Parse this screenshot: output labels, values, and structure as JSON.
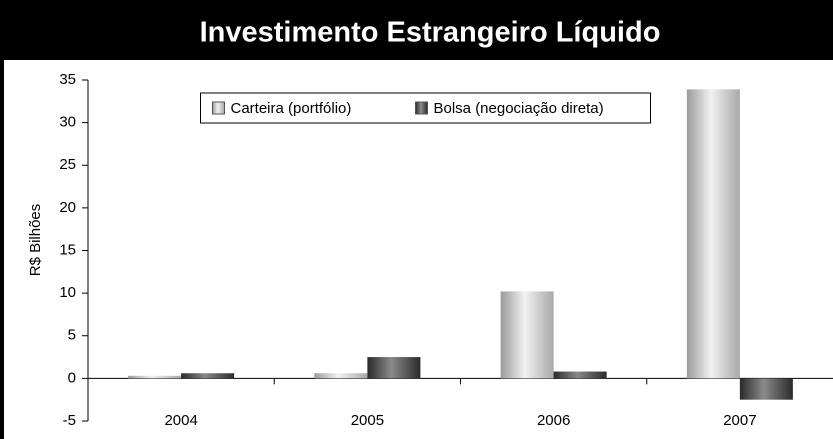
{
  "chart_data": {
    "type": "bar",
    "title": "Investimento Estrangeiro Líquido",
    "y_label": "R$ Bilhões",
    "categories": [
      "2004",
      "2005",
      "2006",
      "2007"
    ],
    "series": [
      {
        "name": "Carteira (portfólio)",
        "color": "#d4d4d4",
        "values": [
          0.3,
          0.6,
          10.2,
          33.9
        ]
      },
      {
        "name": "Bolsa (negociação direta)",
        "color": "#4a4a4a",
        "values": [
          0.6,
          2.5,
          0.8,
          -2.5
        ]
      }
    ],
    "ylim": [
      -5,
      35
    ],
    "yticks": [
      -5,
      0,
      5,
      10,
      15,
      20,
      25,
      30,
      35
    ],
    "legend": "upper center",
    "grid": false
  }
}
